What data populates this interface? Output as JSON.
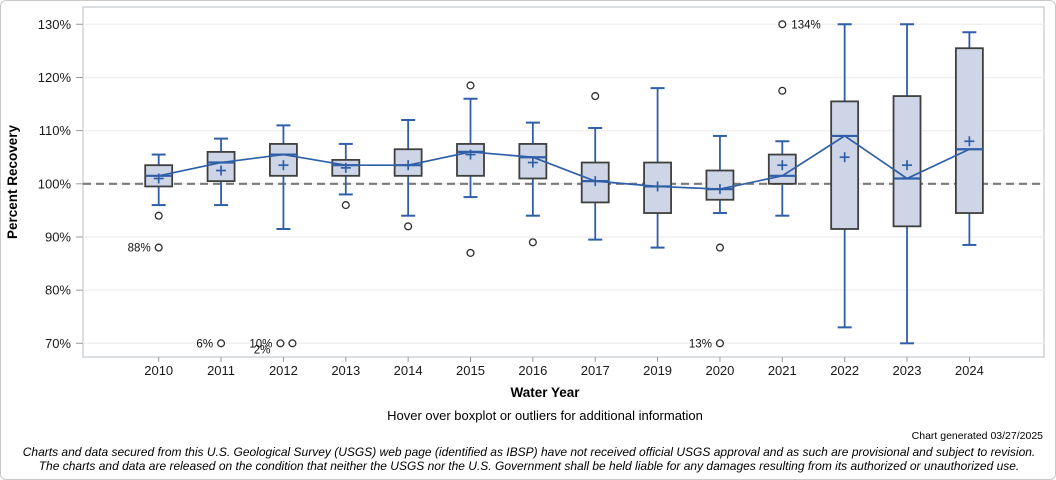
{
  "colors": {
    "box_fill": "#cdd5e6",
    "box_stroke": "#3f3f3f",
    "blue": "#2f5fa7",
    "reference": "#7a7a7a",
    "grid": "#f0f0f0",
    "frame": "#c3c7cd",
    "tick": "#999999",
    "outlier_stroke": "#2e2e2e"
  },
  "notes": {
    "hover": "Hover over boxplot or outliers for additional information",
    "generated": "Chart generated 03/27/2025",
    "disclaimer1": "Charts and data secured from this U.S. Geological Survey (USGS) web page (identified as IBSP) have not received official USGS approval and as such are provisional and subject to revision.",
    "disclaimer2": "The charts and data are released on the condition that neither the USGS nor the U.S. Government shall be held liable for any damages resulting from its authorized or unauthorized use."
  },
  "chart_data": {
    "type": "boxplot",
    "title": "",
    "xlabel": "Water Year",
    "ylabel": "Percent Recovery",
    "ylim": [
      68,
      133
    ],
    "y_ticks": [
      70,
      80,
      90,
      100,
      110,
      120,
      130
    ],
    "y_tick_suffix": "%",
    "reference_line": 100,
    "grid": true,
    "median_connect_line": true,
    "categories": [
      "2010",
      "2011",
      "2012",
      "2013",
      "2014",
      "2015",
      "2016",
      "2017",
      "2019",
      "2020",
      "2021",
      "2022",
      "2023",
      "2024"
    ],
    "boxes": [
      {
        "year": "2010",
        "low": 96,
        "q1": 99.5,
        "median": 101.5,
        "q3": 103.5,
        "high": 105.5,
        "mean": 101,
        "outliers": [
          {
            "value": 94
          },
          {
            "value": 88,
            "label": "88%",
            "label_side": "left"
          }
        ]
      },
      {
        "year": "2011",
        "low": 96,
        "q1": 100.5,
        "median": 104,
        "q3": 106,
        "high": 108.5,
        "mean": 102.5,
        "outliers": [
          {
            "value": 6,
            "plot_at": 70,
            "label": "6%",
            "label_side": "left"
          }
        ]
      },
      {
        "year": "2012",
        "low": 91.5,
        "q1": 101.5,
        "median": 105.5,
        "q3": 107.5,
        "high": 111,
        "mean": 103.5,
        "outliers": [
          {
            "value": 10,
            "plot_at": 70,
            "dx": -3,
            "label": "10%",
            "label_side": "left"
          },
          {
            "value": 2,
            "plot_at": 70,
            "dx": 9,
            "label": "2%",
            "label_side": "left",
            "label_dx": -14,
            "label_dy": 6
          }
        ]
      },
      {
        "year": "2013",
        "low": 98,
        "q1": 101.5,
        "median": 103.5,
        "q3": 104.5,
        "high": 107.5,
        "mean": 103,
        "outliers": [
          {
            "value": 96
          }
        ]
      },
      {
        "year": "2014",
        "low": 94,
        "q1": 101.5,
        "median": 103.5,
        "q3": 106.5,
        "high": 112,
        "mean": 103.5,
        "outliers": [
          {
            "value": 92
          }
        ]
      },
      {
        "year": "2015",
        "low": 97.5,
        "q1": 101.5,
        "median": 106,
        "q3": 107.5,
        "high": 116,
        "mean": 105.5,
        "outliers": [
          {
            "value": 118.5
          },
          {
            "value": 87
          }
        ]
      },
      {
        "year": "2016",
        "low": 94,
        "q1": 101,
        "median": 105,
        "q3": 107.5,
        "high": 111.5,
        "mean": 104,
        "outliers": [
          {
            "value": 89
          }
        ]
      },
      {
        "year": "2017",
        "low": 89.5,
        "q1": 96.5,
        "median": 100.5,
        "q3": 104,
        "high": 110.5,
        "mean": 100.5,
        "outliers": [
          {
            "value": 116.5
          }
        ]
      },
      {
        "year": "2019",
        "low": 88,
        "q1": 94.5,
        "median": 99.5,
        "q3": 104,
        "high": 118,
        "mean": 99.5,
        "outliers": []
      },
      {
        "year": "2020",
        "low": 94.5,
        "q1": 97,
        "median": 99,
        "q3": 102.5,
        "high": 109,
        "mean": 99,
        "outliers": [
          {
            "value": 88
          },
          {
            "value": 13,
            "plot_at": 70,
            "label": "13%",
            "label_side": "left"
          }
        ]
      },
      {
        "year": "2021",
        "low": 94,
        "q1": 100,
        "median": 101.5,
        "q3": 105.5,
        "high": 108,
        "mean": 103.5,
        "outliers": [
          {
            "value": 117.5
          },
          {
            "value": 134,
            "plot_at": 130,
            "label": "134%",
            "label_side": "right"
          }
        ]
      },
      {
        "year": "2022",
        "low": 73,
        "q1": 91.5,
        "median": 109,
        "q3": 115.5,
        "high": 130,
        "mean": 105,
        "outliers": []
      },
      {
        "year": "2023",
        "low": 70,
        "q1": 92,
        "median": 101,
        "q3": 116.5,
        "high": 130,
        "mean": 103.5,
        "outliers": []
      },
      {
        "year": "2024",
        "low": 88.5,
        "q1": 94.5,
        "median": 106.5,
        "q3": 125.5,
        "high": 128.5,
        "mean": 108,
        "outliers": []
      }
    ]
  }
}
